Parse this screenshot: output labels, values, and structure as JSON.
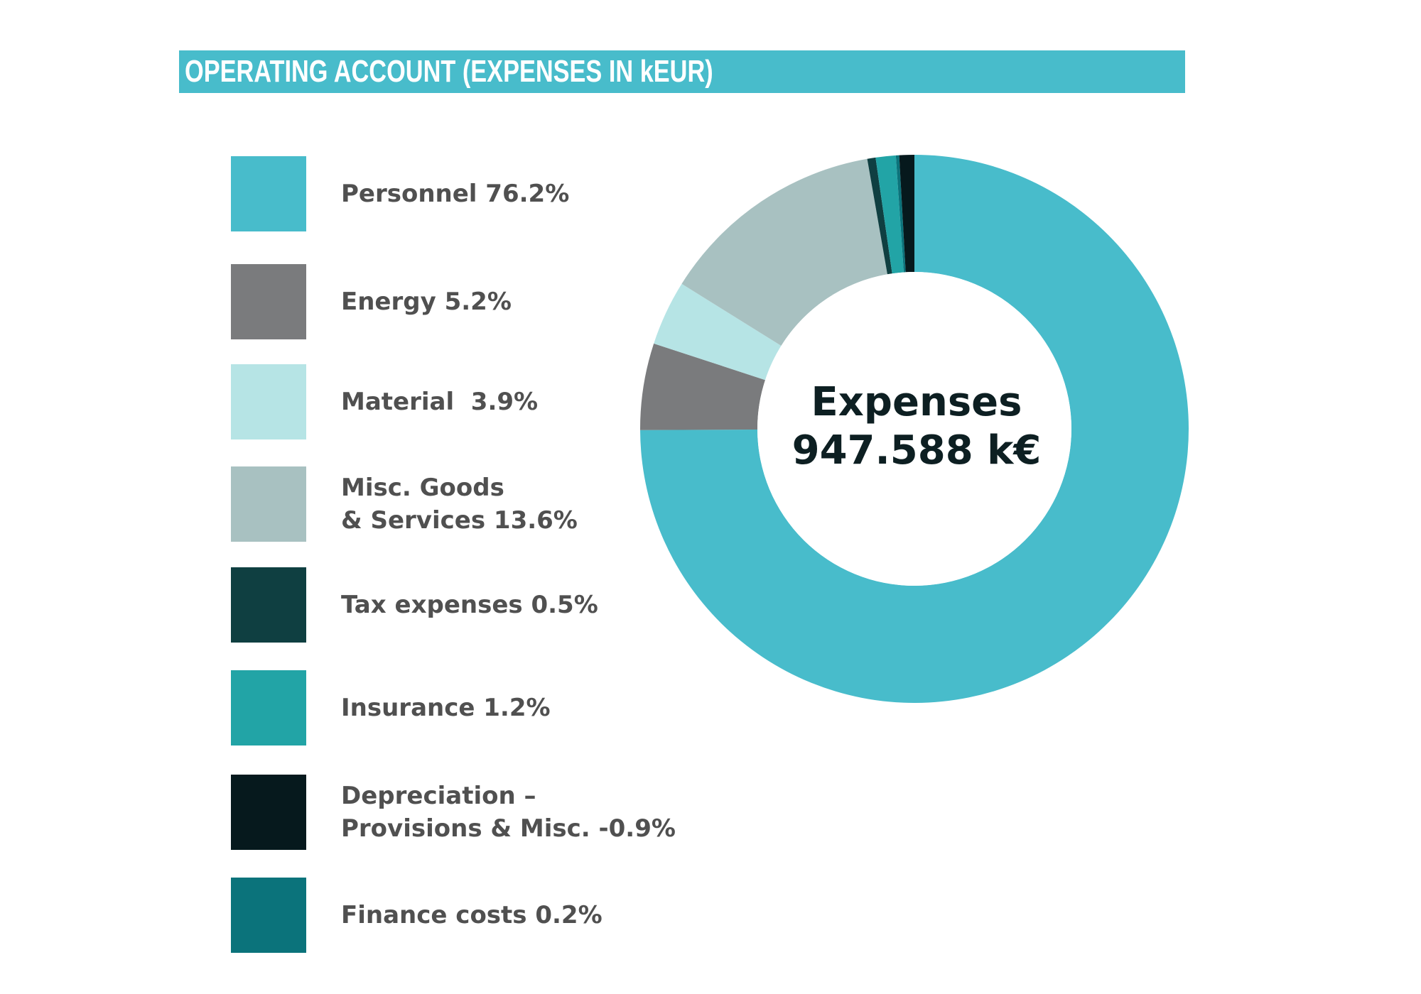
{
  "title": "OPERATING ACCOUNT (EXPENSES IN kEUR)",
  "center": {
    "title": "Expenses",
    "value": "947.588 k€"
  },
  "legend": [
    {
      "label": "Personnel 76.2%",
      "color": "#48bccb"
    },
    {
      "label": "Energy 5.2%",
      "color": "#7a7b7d"
    },
    {
      "label": "Material  3.9%",
      "color": "#b6e4e5"
    },
    {
      "label": "Misc. Goods\n& Services 13.6%",
      "color": "#a8c1c1"
    },
    {
      "label": "Tax expenses 0.5%",
      "color": "#0f3f41"
    },
    {
      "label": "Insurance 1.2%",
      "color": "#22a4a6"
    },
    {
      "label": "Depreciation –\nProvisions & Misc. -0.9%",
      "color": "#06191d"
    },
    {
      "label": "Finance costs 0.2%",
      "color": "#0b737b"
    }
  ],
  "chart_data": {
    "type": "pie",
    "variant": "donut",
    "title": "OPERATING ACCOUNT (EXPENSES IN kEUR)",
    "center_text": [
      "Expenses",
      "947.588 k€"
    ],
    "legend_position": "left",
    "slice_order": [
      "Personnel",
      "Energy",
      "Material",
      "Misc. Goods & Services",
      "Tax expenses",
      "Insurance",
      "Finance costs",
      "Depreciation – Provisions & Misc."
    ],
    "categories": [
      "Personnel",
      "Energy",
      "Material",
      "Misc. Goods & Services",
      "Tax expenses",
      "Insurance",
      "Depreciation – Provisions & Misc.",
      "Finance costs"
    ],
    "values": [
      76.2,
      5.2,
      3.9,
      13.6,
      0.5,
      1.2,
      -0.9,
      0.2
    ],
    "colors": [
      "#48bccb",
      "#7a7b7d",
      "#b6e4e5",
      "#a8c1c1",
      "#0f3f41",
      "#22a4a6",
      "#06191d",
      "#0b737b"
    ]
  }
}
